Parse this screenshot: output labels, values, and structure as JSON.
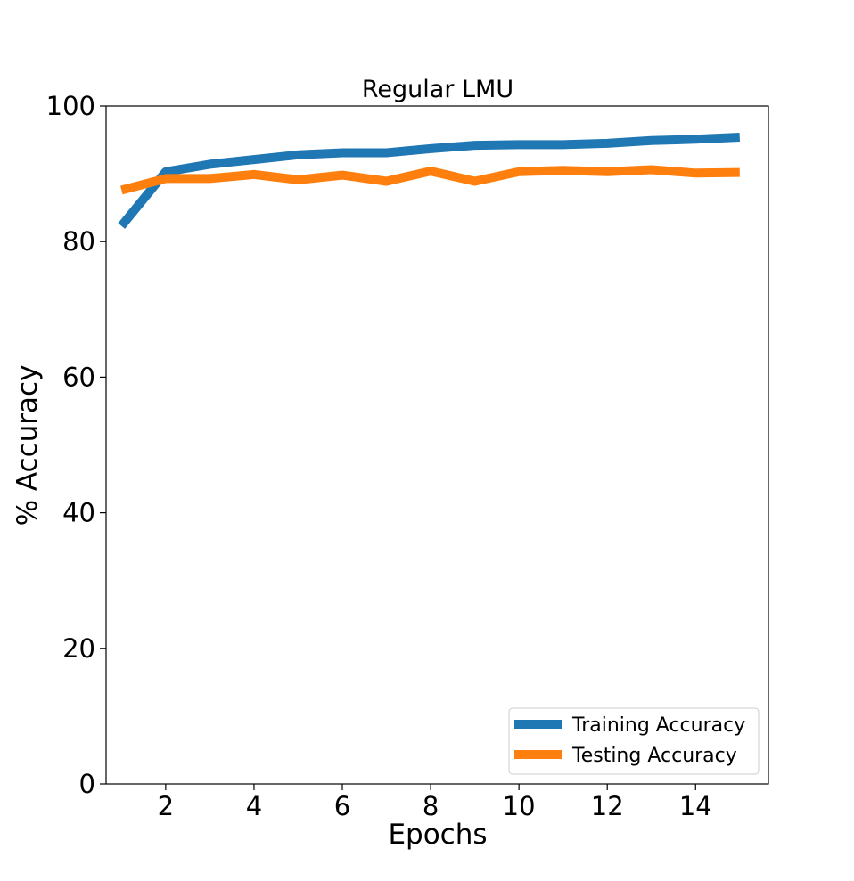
{
  "chart_data": {
    "type": "line",
    "title": "Regular LMU",
    "xlabel": "Epochs",
    "ylabel": "% Accuracy",
    "xlim": [
      0.65,
      15.65
    ],
    "ylim": [
      0,
      100
    ],
    "xticks": [
      2,
      4,
      6,
      8,
      10,
      12,
      14
    ],
    "yticks": [
      0,
      20,
      40,
      60,
      80,
      100
    ],
    "grid": false,
    "legend_position": "lower-right",
    "x": [
      1,
      2,
      3,
      4,
      5,
      6,
      7,
      8,
      9,
      10,
      11,
      12,
      13,
      14,
      15
    ],
    "series": [
      {
        "name": "Training Accuracy",
        "color": "#1f77b4",
        "values": [
          82.3,
          90.3,
          91.4,
          92.1,
          92.8,
          93.1,
          93.1,
          93.7,
          94.2,
          94.3,
          94.3,
          94.5,
          94.9,
          95.1,
          95.4
        ]
      },
      {
        "name": "Testing Accuracy",
        "color": "#ff7f0e",
        "values": [
          87.6,
          89.3,
          89.3,
          89.9,
          89.1,
          89.8,
          88.9,
          90.4,
          88.9,
          90.3,
          90.5,
          90.3,
          90.6,
          90.1,
          90.2
        ]
      }
    ]
  }
}
